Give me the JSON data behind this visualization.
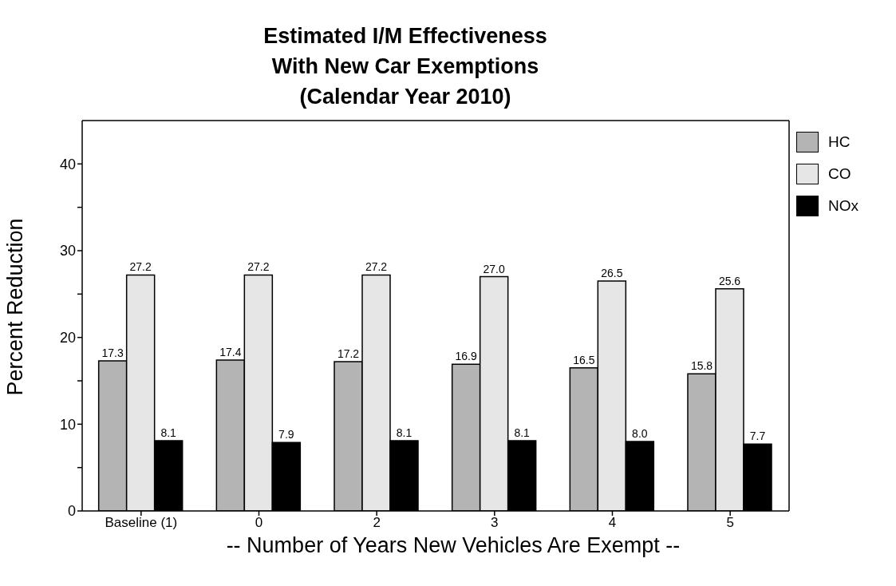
{
  "chart_data": {
    "type": "bar",
    "title": "Estimated I/M Effectiveness\nWith New Car Exemptions\n(Calendar Year 2010)",
    "xlabel": "-- Number of Years New Vehicles Are Exempt --",
    "ylabel": "Percent Reduction",
    "categories": [
      "Baseline (1)",
      "0",
      "2",
      "3",
      "4",
      "5"
    ],
    "series": [
      {
        "name": "HC",
        "color": "#b4b4b4",
        "values": [
          17.3,
          17.4,
          17.2,
          16.9,
          16.5,
          15.8
        ],
        "value_labels": [
          "17.3",
          "17.4",
          "17.2",
          "16.9",
          "16.5",
          "15.8"
        ]
      },
      {
        "name": "CO",
        "color": "#e6e6e6",
        "values": [
          27.2,
          27.2,
          27.2,
          27.0,
          26.5,
          25.6
        ],
        "value_labels": [
          "27.2",
          "27.2",
          "27.2",
          "27.0",
          "26.5",
          "25.6"
        ]
      },
      {
        "name": "NOx",
        "color": "#000000",
        "values": [
          8.1,
          7.9,
          8.1,
          8.1,
          8.0,
          7.7
        ],
        "value_labels": [
          "8.1",
          "7.9",
          "8.1",
          "8.1",
          "8.0",
          "7.7"
        ]
      }
    ],
    "ylim": [
      0,
      45
    ],
    "yticks": [
      0,
      {
        "value": 5,
        "label": null
      },
      10,
      {
        "value": 15,
        "label": null
      },
      20,
      {
        "value": 25,
        "label": null
      },
      30,
      {
        "value": 35,
        "label": null
      },
      40
    ],
    "grid": false,
    "legend": "top right"
  }
}
